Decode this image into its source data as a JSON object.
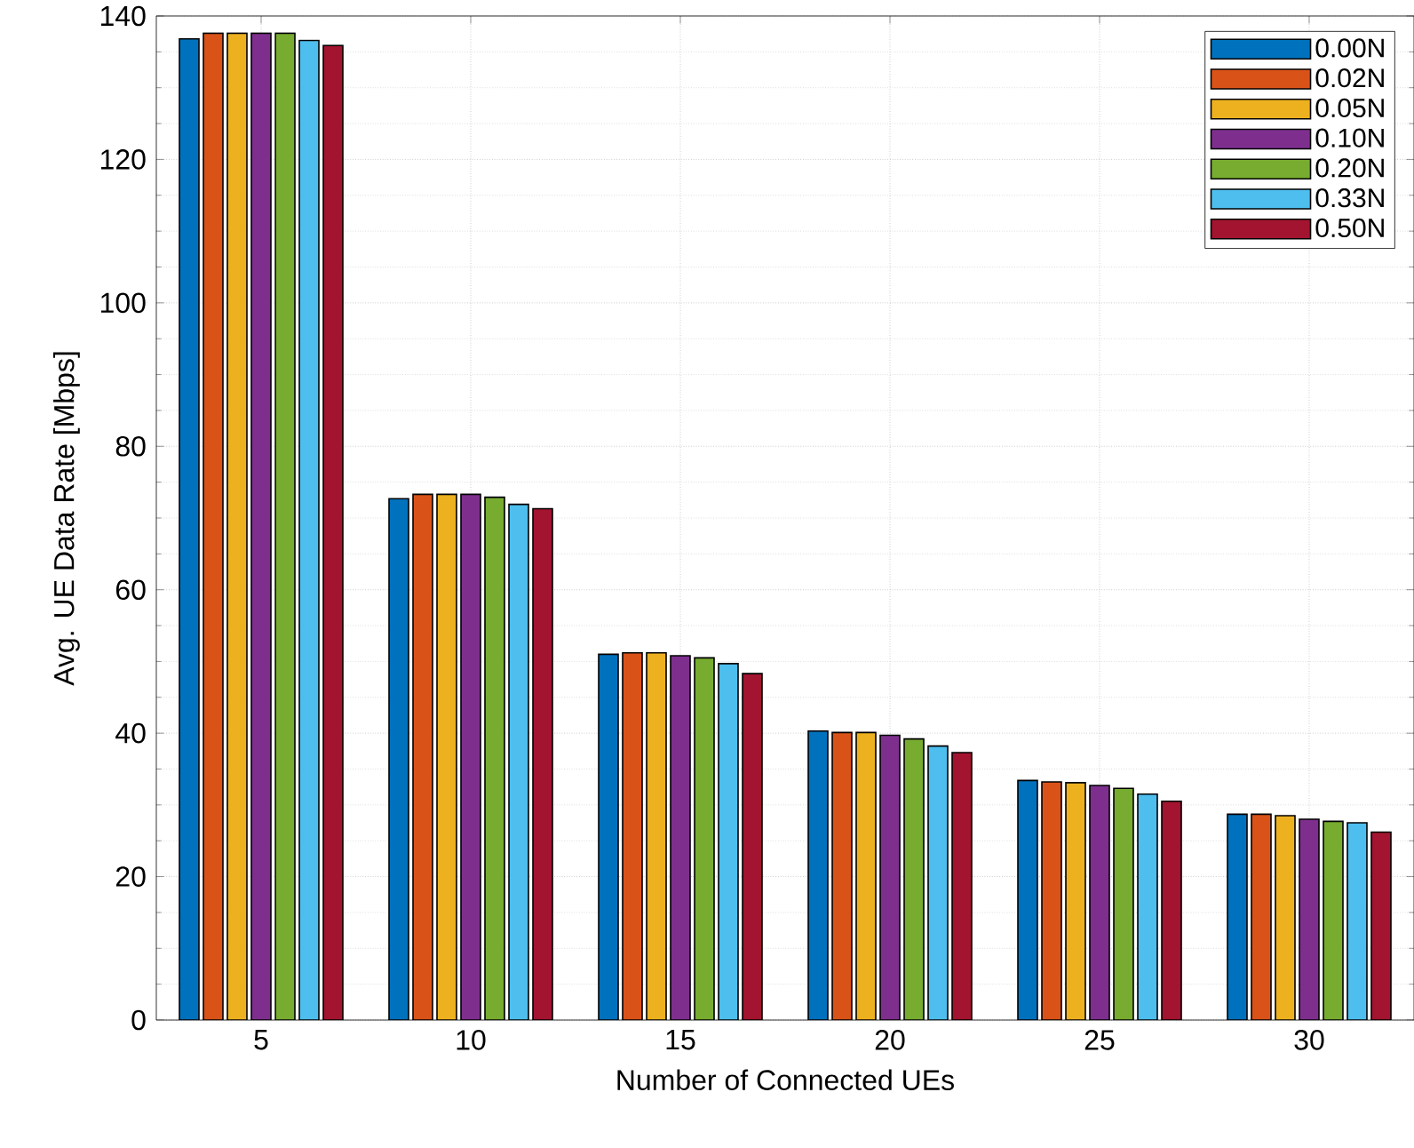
{
  "chart_data": {
    "type": "bar",
    "xlabel": "Number of Connected UEs",
    "ylabel": "Avg. UE Data Rate [Mbps]",
    "categories": [
      "5",
      "10",
      "15",
      "20",
      "25",
      "30"
    ],
    "series": [
      {
        "name": "0.00N",
        "color": "#0072bd",
        "values": [
          136.8,
          72.7,
          51.0,
          40.3,
          33.4,
          28.7
        ]
      },
      {
        "name": "0.02N",
        "color": "#d95319",
        "values": [
          137.6,
          73.3,
          51.2,
          40.1,
          33.2,
          28.7
        ]
      },
      {
        "name": "0.05N",
        "color": "#edb120",
        "values": [
          137.6,
          73.3,
          51.2,
          40.1,
          33.1,
          28.5
        ]
      },
      {
        "name": "0.10N",
        "color": "#7e2f8e",
        "values": [
          137.6,
          73.3,
          50.8,
          39.7,
          32.7,
          28.0
        ]
      },
      {
        "name": "0.20N",
        "color": "#77ac30",
        "values": [
          137.6,
          72.9,
          50.5,
          39.2,
          32.3,
          27.7
        ]
      },
      {
        "name": "0.33N",
        "color": "#4dbeee",
        "values": [
          136.6,
          71.9,
          49.7,
          38.2,
          31.5,
          27.5
        ]
      },
      {
        "name": "0.50N",
        "color": "#a2142f",
        "values": [
          135.9,
          71.3,
          48.3,
          37.3,
          30.5,
          26.2
        ]
      }
    ],
    "ylim": [
      0,
      140
    ],
    "yticks": [
      0,
      20,
      40,
      60,
      80,
      100,
      120,
      140
    ],
    "grid": true,
    "legend": "top right"
  }
}
